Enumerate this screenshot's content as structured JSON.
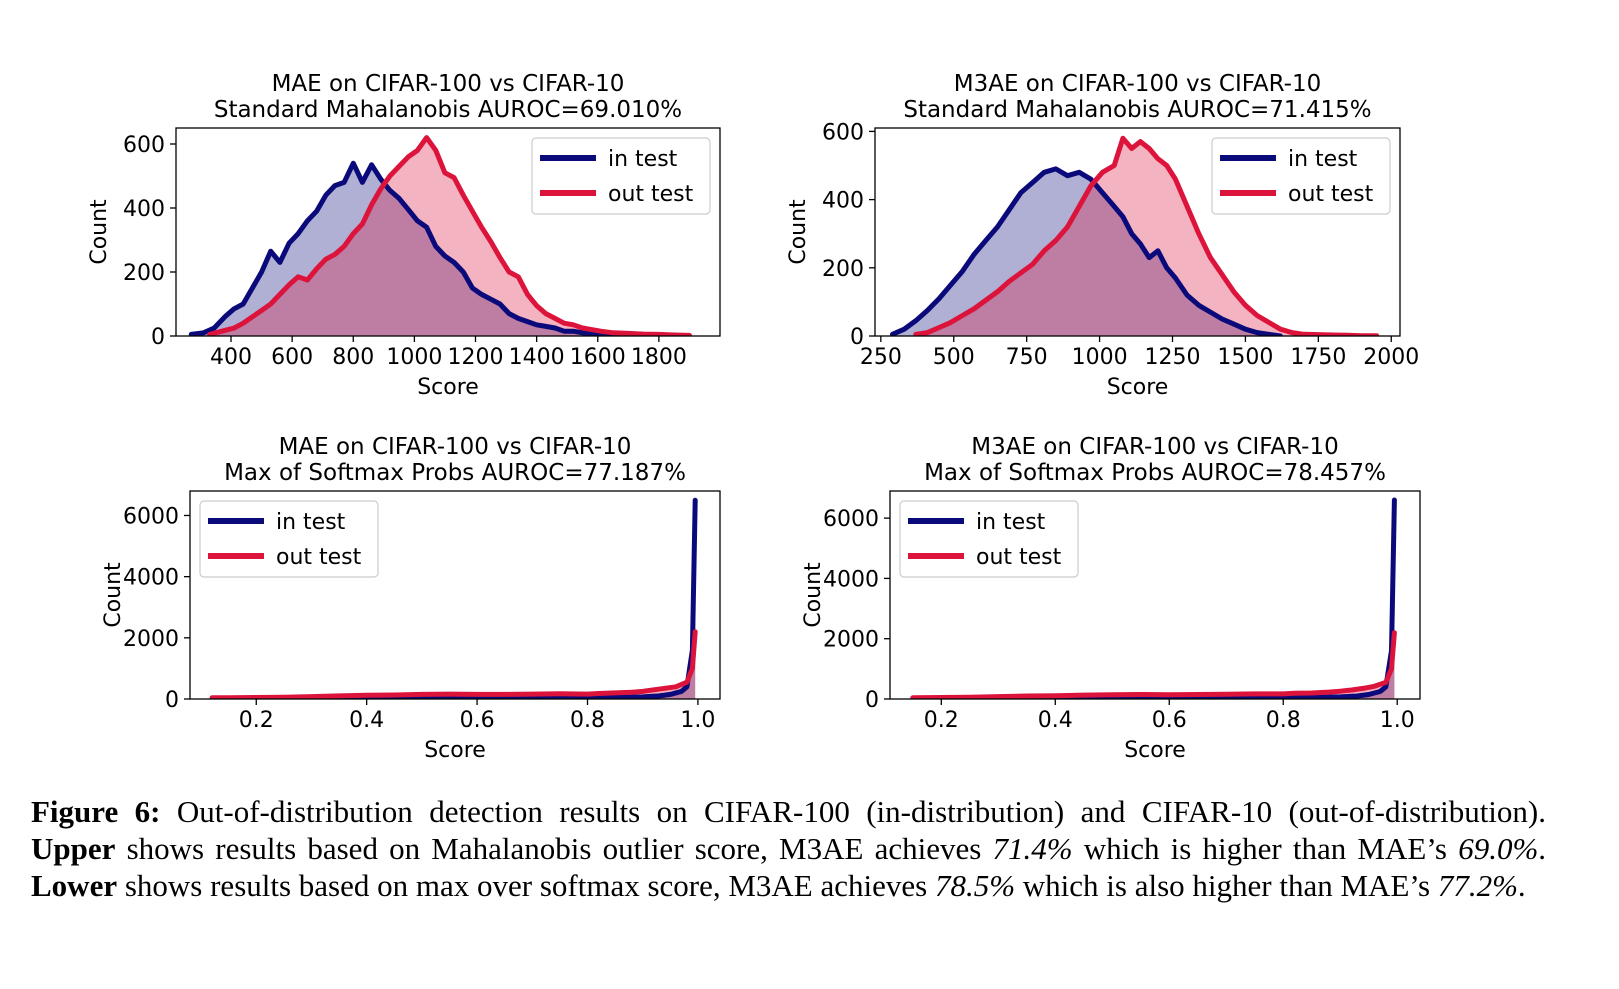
{
  "colors": {
    "in_test": "#0a0a7a",
    "out_test": "#dc143c"
  },
  "chart_data": [
    {
      "type": "area",
      "title": "MAE on CIFAR-100 vs CIFAR-10",
      "subtitle": "Standard Mahalanobis AUROC=69.010%",
      "xlabel": "Score",
      "ylabel": "Count",
      "xlim": [
        220,
        2000
      ],
      "ylim": [
        0,
        650
      ],
      "xticks": [
        400,
        600,
        800,
        1000,
        1200,
        1400,
        1600,
        1800
      ],
      "xtick_labels": [
        "400",
        "600",
        "800",
        "1000",
        "1200",
        "1400",
        "1600",
        "1800"
      ],
      "yticks": [
        0,
        200,
        400,
        600
      ],
      "ytick_labels": [
        "0",
        "200",
        "400",
        "600"
      ],
      "legend": {
        "position": "top-right",
        "entries": [
          "in test",
          "out test"
        ]
      },
      "series": [
        {
          "name": "in test",
          "x": [
            270,
            310,
            345,
            380,
            410,
            440,
            470,
            500,
            530,
            560,
            590,
            620,
            650,
            680,
            710,
            740,
            770,
            800,
            830,
            860,
            890,
            920,
            950,
            980,
            1010,
            1040,
            1070,
            1100,
            1130,
            1160,
            1190,
            1220,
            1250,
            1280,
            1310,
            1340,
            1370,
            1400,
            1430,
            1460,
            1490,
            1520,
            1550,
            1580,
            1610,
            1640,
            1670
          ],
          "values": [
            5,
            10,
            25,
            60,
            85,
            100,
            150,
            200,
            265,
            230,
            290,
            320,
            360,
            390,
            440,
            470,
            480,
            540,
            480,
            535,
            490,
            455,
            430,
            395,
            360,
            340,
            280,
            250,
            230,
            200,
            150,
            130,
            115,
            100,
            70,
            55,
            45,
            35,
            30,
            25,
            15,
            15,
            10,
            5,
            5,
            2,
            0
          ]
        },
        {
          "name": "out test",
          "x": [
            330,
            370,
            410,
            440,
            470,
            500,
            530,
            560,
            590,
            620,
            650,
            680,
            710,
            740,
            770,
            800,
            830,
            860,
            890,
            920,
            950,
            980,
            1010,
            1040,
            1070,
            1100,
            1130,
            1160,
            1190,
            1220,
            1250,
            1280,
            1310,
            1340,
            1370,
            1400,
            1430,
            1460,
            1490,
            1520,
            1550,
            1580,
            1610,
            1650,
            1700,
            1750,
            1800,
            1850,
            1900
          ],
          "values": [
            5,
            15,
            25,
            40,
            60,
            80,
            100,
            130,
            160,
            185,
            175,
            210,
            240,
            255,
            280,
            320,
            350,
            410,
            460,
            500,
            530,
            560,
            580,
            620,
            580,
            510,
            495,
            440,
            390,
            340,
            295,
            245,
            200,
            185,
            130,
            95,
            70,
            55,
            40,
            35,
            25,
            20,
            15,
            10,
            8,
            6,
            5,
            3,
            2
          ]
        }
      ]
    },
    {
      "type": "area",
      "title": "M3AE on CIFAR-100 vs CIFAR-10",
      "subtitle": "Standard Mahalanobis AUROC=71.415%",
      "xlabel": "Score",
      "ylabel": "Count",
      "xlim": [
        230,
        2030
      ],
      "ylim": [
        0,
        610
      ],
      "xticks": [
        250,
        500,
        750,
        1000,
        1250,
        1500,
        1750,
        2000
      ],
      "xtick_labels": [
        "250",
        "500",
        "750",
        "1000",
        "1250",
        "1500",
        "1750",
        "2000"
      ],
      "yticks": [
        0,
        200,
        400,
        600
      ],
      "ytick_labels": [
        "0",
        "200",
        "400",
        "600"
      ],
      "legend": {
        "position": "top-right",
        "entries": [
          "in test",
          "out test"
        ]
      },
      "series": [
        {
          "name": "in test",
          "x": [
            290,
            330,
            370,
            410,
            450,
            490,
            530,
            570,
            610,
            650,
            690,
            730,
            770,
            810,
            850,
            890,
            930,
            970,
            1010,
            1050,
            1080,
            1110,
            1140,
            1170,
            1200,
            1230,
            1260,
            1300,
            1340,
            1380,
            1420,
            1460,
            1500,
            1540,
            1580,
            1620
          ],
          "values": [
            5,
            20,
            45,
            75,
            110,
            150,
            190,
            240,
            280,
            320,
            370,
            420,
            450,
            480,
            490,
            470,
            480,
            460,
            420,
            380,
            350,
            300,
            270,
            230,
            250,
            200,
            170,
            120,
            90,
            70,
            50,
            35,
            20,
            10,
            5,
            0
          ]
        },
        {
          "name": "out test",
          "x": [
            370,
            410,
            450,
            490,
            530,
            570,
            610,
            650,
            690,
            730,
            770,
            810,
            850,
            890,
            930,
            970,
            1010,
            1050,
            1080,
            1110,
            1140,
            1170,
            1200,
            1230,
            1260,
            1300,
            1340,
            1380,
            1420,
            1460,
            1500,
            1540,
            1580,
            1620,
            1660,
            1700,
            1750,
            1800,
            1850,
            1900,
            1950
          ],
          "values": [
            5,
            10,
            25,
            40,
            60,
            80,
            105,
            130,
            160,
            185,
            210,
            250,
            280,
            320,
            380,
            440,
            480,
            500,
            580,
            550,
            570,
            550,
            520,
            500,
            460,
            380,
            300,
            230,
            180,
            130,
            90,
            60,
            40,
            20,
            10,
            5,
            4,
            3,
            2,
            1,
            1
          ]
        }
      ]
    },
    {
      "type": "area",
      "title": "MAE on CIFAR-100 vs CIFAR-10",
      "subtitle": "Max of Softmax Probs AUROC=77.187%",
      "xlabel": "Score",
      "ylabel": "Count",
      "xlim": [
        0.08,
        1.04
      ],
      "ylim": [
        0,
        6800
      ],
      "xticks": [
        0.2,
        0.4,
        0.6,
        0.8,
        1.0
      ],
      "xtick_labels": [
        "0.2",
        "0.4",
        "0.6",
        "0.8",
        "1.0"
      ],
      "yticks": [
        0,
        2000,
        4000,
        6000
      ],
      "ytick_labels": [
        "0",
        "2000",
        "4000",
        "6000"
      ],
      "legend": {
        "position": "top-left",
        "entries": [
          "in test",
          "out test"
        ]
      },
      "series": [
        {
          "name": "in test",
          "x": [
            0.12,
            0.2,
            0.3,
            0.4,
            0.5,
            0.6,
            0.7,
            0.8,
            0.85,
            0.9,
            0.93,
            0.95,
            0.97,
            0.98,
            0.99,
            0.995
          ],
          "values": [
            0,
            5,
            10,
            15,
            20,
            25,
            30,
            40,
            50,
            70,
            100,
            150,
            250,
            400,
            1600,
            6500
          ]
        },
        {
          "name": "out test",
          "x": [
            0.12,
            0.15,
            0.2,
            0.25,
            0.3,
            0.35,
            0.4,
            0.45,
            0.5,
            0.55,
            0.6,
            0.65,
            0.7,
            0.75,
            0.8,
            0.82,
            0.85,
            0.88,
            0.9,
            0.92,
            0.94,
            0.96,
            0.98,
            0.99,
            0.995
          ],
          "values": [
            40,
            40,
            50,
            60,
            80,
            100,
            120,
            130,
            150,
            160,
            150,
            150,
            160,
            170,
            160,
            180,
            200,
            220,
            250,
            300,
            350,
            400,
            550,
            1000,
            2200
          ]
        }
      ]
    },
    {
      "type": "area",
      "title": "M3AE on CIFAR-100 vs CIFAR-10",
      "subtitle": "Max of Softmax Probs AUROC=78.457%",
      "xlabel": "Score",
      "ylabel": "Count",
      "xlim": [
        0.11,
        1.04
      ],
      "ylim": [
        0,
        6900
      ],
      "xticks": [
        0.2,
        0.4,
        0.6,
        0.8,
        1.0
      ],
      "xtick_labels": [
        "0.2",
        "0.4",
        "0.6",
        "0.8",
        "1.0"
      ],
      "yticks": [
        0,
        2000,
        4000,
        6000
      ],
      "ytick_labels": [
        "0",
        "2000",
        "4000",
        "6000"
      ],
      "legend": {
        "position": "top-left",
        "entries": [
          "in test",
          "out test"
        ]
      },
      "series": [
        {
          "name": "in test",
          "x": [
            0.15,
            0.2,
            0.3,
            0.4,
            0.5,
            0.6,
            0.7,
            0.8,
            0.85,
            0.9,
            0.93,
            0.95,
            0.97,
            0.98,
            0.99,
            0.995
          ],
          "values": [
            0,
            5,
            10,
            15,
            20,
            25,
            30,
            40,
            50,
            70,
            100,
            150,
            250,
            400,
            1600,
            6600
          ]
        },
        {
          "name": "out test",
          "x": [
            0.15,
            0.2,
            0.25,
            0.3,
            0.35,
            0.4,
            0.45,
            0.5,
            0.55,
            0.6,
            0.65,
            0.7,
            0.75,
            0.8,
            0.82,
            0.85,
            0.88,
            0.9,
            0.92,
            0.94,
            0.96,
            0.98,
            0.99,
            0.995
          ],
          "values": [
            40,
            50,
            60,
            80,
            100,
            110,
            130,
            140,
            150,
            140,
            150,
            160,
            170,
            170,
            190,
            200,
            230,
            260,
            300,
            350,
            420,
            550,
            1000,
            2200
          ]
        }
      ]
    }
  ],
  "caption": {
    "fig_label": "Figure 6:",
    "t1": " Out-of-distribution detection results on CIFAR-100 (in-distribution) and CIFAR-10 (out-of-distribution). ",
    "upper": "Upper",
    "t2": " shows results based on Mahalanobis outlier score, M3AE achieves ",
    "v1": "71.4%",
    "t3": " which is higher than MAE’s ",
    "v2": "69.0%",
    "t4": ". ",
    "lower": "Lower",
    "t5": " shows results based on max over softmax score, M3AE achieves ",
    "v3": "78.5%",
    "t6": " which is also higher than MAE’s ",
    "v4": "77.2%",
    "t7": "."
  }
}
